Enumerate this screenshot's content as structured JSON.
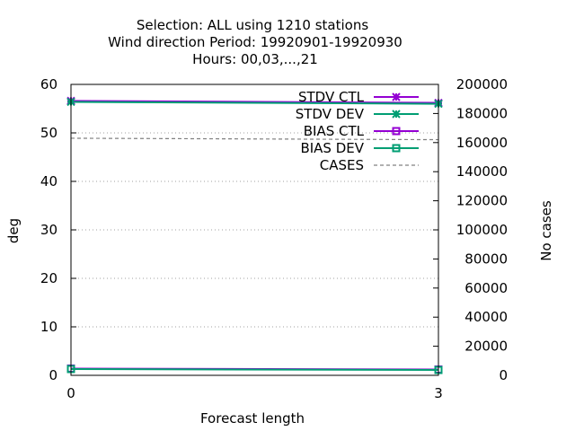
{
  "chart_data": {
    "type": "line",
    "title_lines": [
      "Selection: ALL using  1210 stations",
      "Wind direction   Period: 19920901-19920930",
      "Hours:  00,03,...,21"
    ],
    "xlabel": "Forecast length",
    "ylabel": "deg",
    "y2label": "No cases",
    "x": [
      0,
      3
    ],
    "xlim": [
      0,
      3
    ],
    "ylim": [
      0,
      60
    ],
    "y2lim": [
      0,
      200000
    ],
    "x_ticks": [
      "0",
      "3"
    ],
    "y_ticks": [
      "0",
      "10",
      "20",
      "30",
      "40",
      "50",
      "60"
    ],
    "y2_ticks": [
      "0",
      "20000",
      "40000",
      "60000",
      "80000",
      "100000",
      "120000",
      "140000",
      "160000",
      "180000",
      "200000"
    ],
    "grid": "horizontal dotted",
    "legend_position": "top-right",
    "series": [
      {
        "name": "STDV CTL",
        "values": [
          56.6,
          56.2
        ],
        "color": "#9400d3",
        "marker": "star",
        "axis": "y"
      },
      {
        "name": "STDV DEV",
        "values": [
          56.4,
          56.0
        ],
        "color": "#009e73",
        "marker": "star",
        "axis": "y"
      },
      {
        "name": "BIAS CTL",
        "values": [
          1.4,
          1.2
        ],
        "color": "#9400d3",
        "marker": "square",
        "axis": "y"
      },
      {
        "name": "BIAS DEV",
        "values": [
          1.3,
          1.1
        ],
        "color": "#009e73",
        "marker": "square",
        "axis": "y"
      },
      {
        "name": "CASES",
        "values": [
          163000,
          162000
        ],
        "color": "#808080",
        "marker": "none",
        "dash": true,
        "axis": "y2"
      }
    ]
  }
}
